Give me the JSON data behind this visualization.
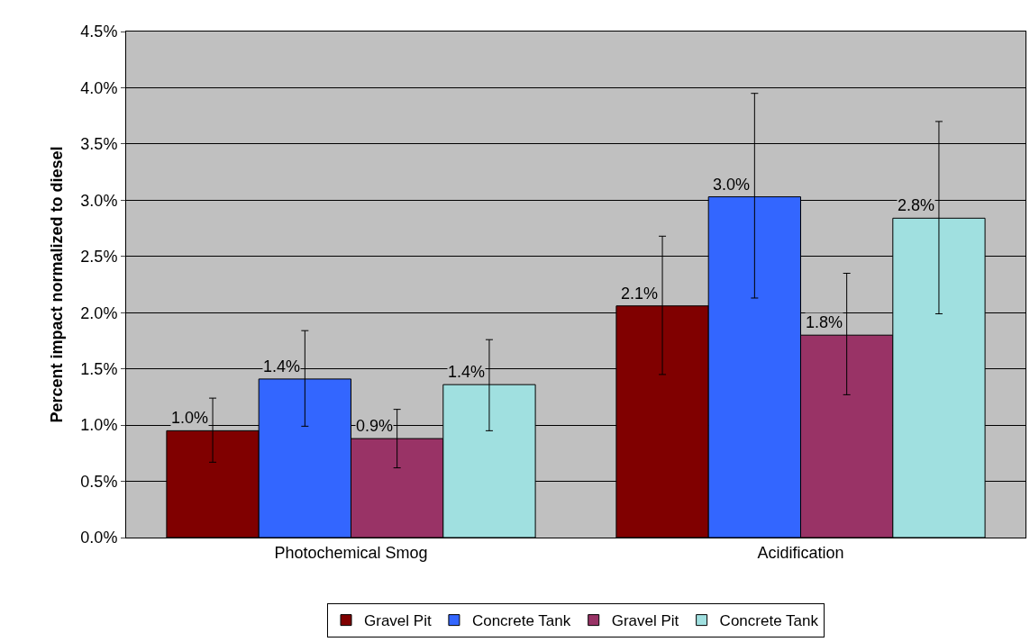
{
  "chart_data": {
    "type": "bar",
    "ylabel": "Percent impact normalized to diesel",
    "categories": [
      "Photochemical Smog",
      "Acidification"
    ],
    "series": [
      {
        "name": "Gravel Pit",
        "color": "#800000",
        "values": [
          0.95,
          2.06
        ],
        "value_labels": [
          "1.0%",
          "2.1%"
        ],
        "errors": [
          [
            0.67,
            1.24
          ],
          [
            1.45,
            2.68
          ]
        ]
      },
      {
        "name": "Concrete Tank",
        "color": "#3366ff",
        "values": [
          1.41,
          3.03
        ],
        "value_labels": [
          "1.4%",
          "3.0%"
        ],
        "errors": [
          [
            0.99,
            1.84
          ],
          [
            2.13,
            3.95
          ]
        ]
      },
      {
        "name": "Gravel Pit",
        "color": "#993366",
        "values": [
          0.88,
          1.8
        ],
        "value_labels": [
          "0.9%",
          "1.8%"
        ],
        "errors": [
          [
            0.62,
            1.14
          ],
          [
            1.27,
            2.35
          ]
        ]
      },
      {
        "name": "Concrete Tank",
        "color": "#a0e0e0",
        "values": [
          1.36,
          2.84
        ],
        "value_labels": [
          "1.4%",
          "2.8%"
        ],
        "errors": [
          [
            0.95,
            1.76
          ],
          [
            1.99,
            3.7
          ]
        ]
      }
    ],
    "ylim": [
      0,
      4.5
    ],
    "yticks": [
      {
        "value": 0,
        "label": "0.0%"
      },
      {
        "value": 0.5,
        "label": "0.5%"
      },
      {
        "value": 1,
        "label": "1.0%"
      },
      {
        "value": 1.5,
        "label": "1.5%"
      },
      {
        "value": 2,
        "label": "2.0%"
      },
      {
        "value": 2.5,
        "label": "2.5%"
      },
      {
        "value": 3,
        "label": "3.0%"
      },
      {
        "value": 3.5,
        "label": "3.5%"
      },
      {
        "value": 4,
        "label": "4.0%"
      },
      {
        "value": 4.5,
        "label": "4.5%"
      }
    ],
    "grid": "y",
    "legend": "bottom"
  }
}
